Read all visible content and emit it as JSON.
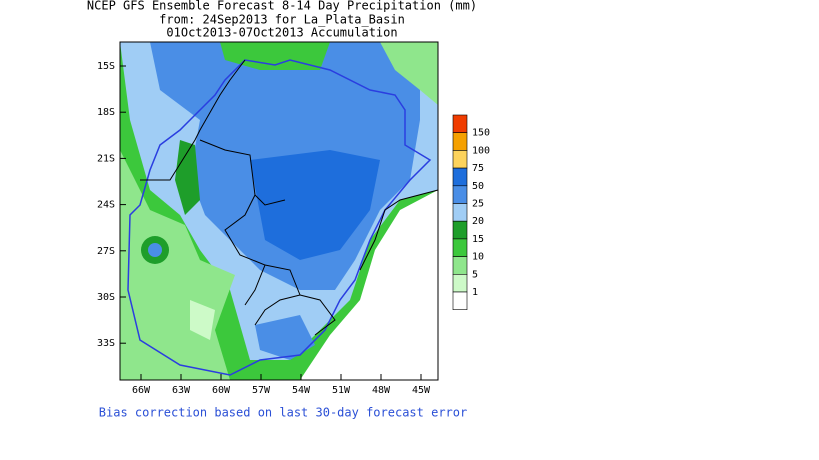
{
  "title_lines": [
    "NCEP GFS Ensemble Forecast 8-14 Day Precipitation (mm)",
    "from: 24Sep2013   for La_Plata_Basin",
    "01Oct2013-07Oct2013 Accumulation"
  ],
  "lat_labels": [
    "15S",
    "18S",
    "21S",
    "24S",
    "27S",
    "30S",
    "33S"
  ],
  "lon_labels": [
    "66W",
    "63W",
    "60W",
    "57W",
    "54W",
    "51W",
    "48W",
    "45W"
  ],
  "legend": {
    "levels": [
      150,
      100,
      75,
      50,
      25,
      20,
      15,
      10,
      5,
      1
    ],
    "colors": [
      "#f03c00",
      "#f5a000",
      "#fdd35c",
      "#1e6edc",
      "#4a8ee6",
      "#a0cdf5",
      "#1e9e2a",
      "#3cc83c",
      "#8fe68c",
      "#cdfac8",
      "#ffffff"
    ]
  },
  "footer": "Bias correction based on last 30-day forecast error"
}
